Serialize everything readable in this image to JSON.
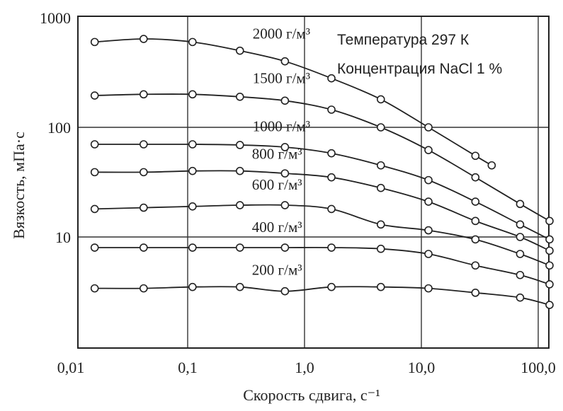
{
  "chart_data": {
    "type": "line",
    "xscale": "log",
    "yscale": "log",
    "xlabel": "Скорость сдвига, с⁻¹",
    "ylabel": "Вязкость, мПа·с",
    "xlim": [
      0.01,
      150
    ],
    "ylim": [
      1,
      1000
    ],
    "xticks": [
      {
        "value": 0.01,
        "label": "0,01"
      },
      {
        "value": 0.1,
        "label": "0,1"
      },
      {
        "value": 1,
        "label": "1,0"
      },
      {
        "value": 10,
        "label": "10,0"
      },
      {
        "value": 100,
        "label": "100,0"
      }
    ],
    "yticks": [
      {
        "value": 10,
        "label": "10"
      },
      {
        "value": 100,
        "label": "100"
      },
      {
        "value": 1000,
        "label": "1000"
      }
    ],
    "grid": true,
    "annotations": [
      "Температура 297 К",
      "Концентрация NaCl 1 %"
    ],
    "series": [
      {
        "name": "2000 г/м³",
        "x": [
          0.016,
          0.042,
          0.11,
          0.28,
          0.68,
          1.7,
          4.5,
          11.5,
          29,
          40
        ],
        "y": [
          600,
          640,
          600,
          500,
          400,
          280,
          180,
          100,
          55,
          45
        ]
      },
      {
        "name": "1500 г/м³",
        "x": [
          0.016,
          0.042,
          0.11,
          0.28,
          0.68,
          1.7,
          4.5,
          11.5,
          29,
          70,
          125
        ],
        "y": [
          195,
          200,
          200,
          190,
          175,
          145,
          100,
          62,
          35,
          20,
          14
        ]
      },
      {
        "name": "1000 г/м³",
        "x": [
          0.016,
          0.042,
          0.11,
          0.28,
          0.68,
          1.7,
          4.5,
          11.5,
          29,
          70,
          125
        ],
        "y": [
          70,
          70,
          70,
          69,
          66,
          58,
          45,
          33,
          21,
          13,
          9.5
        ]
      },
      {
        "name": "800 г/м³",
        "x": [
          0.016,
          0.042,
          0.11,
          0.28,
          0.68,
          1.7,
          4.5,
          11.5,
          29,
          70,
          125
        ],
        "y": [
          39,
          39,
          40,
          40,
          38,
          35,
          28,
          21,
          14,
          10,
          7.5
        ]
      },
      {
        "name": "600 г/м³",
        "x": [
          0.016,
          0.042,
          0.11,
          0.28,
          0.68,
          1.7,
          4.5,
          11.5,
          29,
          70,
          125
        ],
        "y": [
          18,
          18.5,
          19,
          19.5,
          19.5,
          18,
          13,
          11.5,
          9.5,
          7,
          5.5
        ]
      },
      {
        "name": "400 г/м³",
        "x": [
          0.016,
          0.042,
          0.11,
          0.28,
          0.68,
          1.7,
          4.5,
          11.5,
          29,
          70,
          125
        ],
        "y": [
          8,
          8,
          8,
          8,
          8,
          8,
          7.8,
          7,
          5.5,
          4.5,
          3.7
        ]
      },
      {
        "name": "200 г/м³",
        "x": [
          0.016,
          0.042,
          0.11,
          0.28,
          0.68,
          1.7,
          4.5,
          11.5,
          29,
          70,
          125
        ],
        "y": [
          3.4,
          3.4,
          3.5,
          3.5,
          3.2,
          3.5,
          3.5,
          3.4,
          3.1,
          2.8,
          2.4
        ]
      }
    ]
  }
}
